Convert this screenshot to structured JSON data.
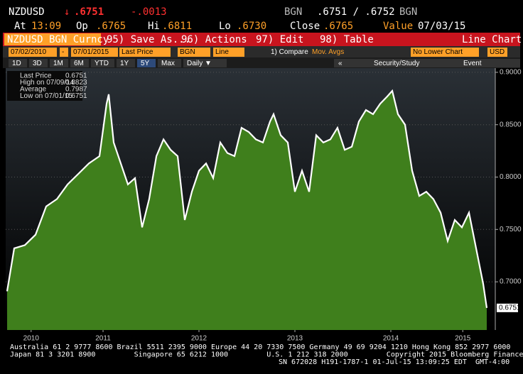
{
  "header": {
    "ticker": "NZDUSD",
    "arrow": "↓",
    "price": ".6751",
    "change": "-.0013",
    "source": "BGN",
    "bid_ask": ".6751 / .6752",
    "source2": "BGN",
    "value_label": "Value",
    "value_date": "07/03/15"
  },
  "quote": [
    {
      "label": "At",
      "value": "13:09"
    },
    {
      "label": "Op",
      "value": ".6765"
    },
    {
      "label": "Hi",
      "value": ".6811"
    },
    {
      "label": "Lo",
      "value": ".6730"
    },
    {
      "label": "Close",
      "value": ".6765"
    }
  ],
  "toolbar": {
    "security": "NZDUSD BGN Curncy",
    "buttons": [
      "95) Save As...",
      "96) Actions",
      "97) Edit",
      "98) Table"
    ],
    "view": "Line Chart"
  },
  "params": {
    "start": "07/02/2010",
    "dash": "-",
    "end": "07/01/2015",
    "field": "Last Price",
    "source": "BGN",
    "style": "Line",
    "compare": "1) Compare",
    "mov_avgs": "Mov. Avgs",
    "lower": "No Lower Chart",
    "currency": "USD"
  },
  "ranges": [
    "1D",
    "3D",
    "1M",
    "6M",
    "YTD",
    "1Y",
    "5Y",
    "Max",
    "Daily ▼"
  ],
  "tools": {
    "back": "«",
    "study": "Security/Study",
    "event": "Event"
  },
  "stats": [
    {
      "label": "Last Price",
      "value": "0.6751"
    },
    {
      "label": "High on 07/09/14",
      "value": "0.8823"
    },
    {
      "label": "Average",
      "value": "0.7987"
    },
    {
      "label": "Low on 07/01/15",
      "value": "0.6751"
    }
  ],
  "chart_data": {
    "type": "area",
    "color": "#3f7f1c",
    "line_color": "#ffffff",
    "grid": true,
    "x": [
      2010.5,
      2010.574,
      2010.685,
      2010.796,
      2010.907,
      2011.019,
      2011.13,
      2011.241,
      2011.352,
      2011.463,
      2011.537,
      2011.559,
      2011.611,
      2011.685,
      2011.759,
      2011.833,
      2011.907,
      2011.981,
      2012.056,
      2012.13,
      2012.204,
      2012.278,
      2012.352,
      2012.426,
      2012.5,
      2012.574,
      2012.648,
      2012.722,
      2012.796,
      2012.87,
      2012.944,
      2013.019,
      2013.093,
      2013.167,
      2013.241,
      2013.278,
      2013.352,
      2013.426,
      2013.5,
      2013.574,
      2013.648,
      2013.722,
      2013.796,
      2013.87,
      2013.944,
      2014.019,
      2014.093,
      2014.167,
      2014.241,
      2014.315,
      2014.389,
      2014.463,
      2014.515,
      2014.574,
      2014.648,
      2014.722,
      2014.796,
      2014.87,
      2014.944,
      2015.019,
      2015.093,
      2015.167,
      2015.241,
      2015.315,
      2015.389,
      2015.463,
      2015.5
    ],
    "values": [
      0.691,
      0.732,
      0.735,
      0.745,
      0.772,
      0.779,
      0.793,
      0.803,
      0.813,
      0.82,
      0.87,
      0.879,
      0.833,
      0.813,
      0.793,
      0.799,
      0.752,
      0.779,
      0.82,
      0.836,
      0.826,
      0.82,
      0.759,
      0.786,
      0.806,
      0.813,
      0.799,
      0.833,
      0.823,
      0.82,
      0.847,
      0.843,
      0.836,
      0.833,
      0.853,
      0.86,
      0.84,
      0.833,
      0.786,
      0.806,
      0.786,
      0.84,
      0.833,
      0.836,
      0.847,
      0.826,
      0.829,
      0.853,
      0.864,
      0.86,
      0.87,
      0.877,
      0.8823,
      0.86,
      0.85,
      0.806,
      0.782,
      0.786,
      0.779,
      0.766,
      0.739,
      0.759,
      0.752,
      0.766,
      0.732,
      0.698,
      0.6751
    ],
    "xlim": [
      2010.485,
      2015.589
    ],
    "ylim": [
      0.654,
      0.904
    ],
    "yticks": [
      {
        "value": 0.7,
        "label": "0.7000"
      },
      {
        "value": 0.75,
        "label": "0.7500"
      },
      {
        "value": 0.8,
        "label": "0.8000"
      },
      {
        "value": 0.85,
        "label": "0.8500"
      },
      {
        "value": 0.9,
        "label": "0.9000"
      }
    ],
    "xticks": [
      {
        "value": 2010.75,
        "label": "2010"
      },
      {
        "value": 2011.5,
        "label": "2011"
      },
      {
        "value": 2012.5,
        "label": "2012"
      },
      {
        "value": 2013.5,
        "label": "2013"
      },
      {
        "value": 2014.5,
        "label": "2014"
      },
      {
        "value": 2015.25,
        "label": "2015"
      }
    ]
  },
  "footer": [
    "Australia 61 2 9777 8600 Brazil 5511 2395 9000 Europe 44 20 7330 7500 Germany 49 69 9204 1210 Hong Kong 852 2977 6000",
    "Japan 81 3 3201 8900         Singapore 65 6212 1000         U.S. 1 212 318 2000         Copyright 2015 Bloomberg Finance L.P.",
    "SN 672028 H191-1787-1 01-Jul-15 13:09:25 EDT  GMT-4:00"
  ]
}
